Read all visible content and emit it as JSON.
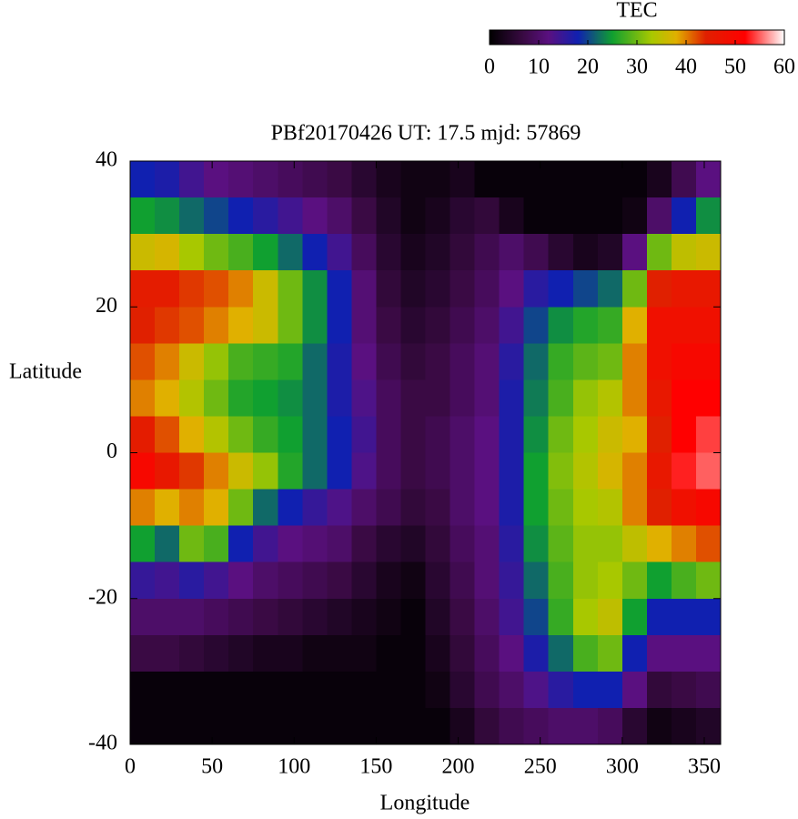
{
  "chart_data": {
    "type": "heatmap",
    "title": "PBf20170426  UT: 17.5  mjd: 57869",
    "x_label": "Longitude",
    "y_label": "Latitude",
    "colorbar_label": "TEC",
    "xlim": [
      0,
      360
    ],
    "ylim": [
      -40,
      40
    ],
    "xticks": [
      0,
      50,
      100,
      150,
      200,
      250,
      300,
      350
    ],
    "yticks": [
      -40,
      -20,
      0,
      20,
      40
    ],
    "clim": [
      0,
      60
    ],
    "cticks": [
      0,
      10,
      20,
      30,
      40,
      50,
      60
    ],
    "colormap": [
      {
        "value": 0,
        "color": "#000000"
      },
      {
        "value": 7,
        "color": "#3a0a44"
      },
      {
        "value": 12,
        "color": "#5a1080"
      },
      {
        "value": 18,
        "color": "#1020b0"
      },
      {
        "value": 25,
        "color": "#10a030"
      },
      {
        "value": 33,
        "color": "#a8c800"
      },
      {
        "value": 38,
        "color": "#e0b000"
      },
      {
        "value": 44,
        "color": "#e02000"
      },
      {
        "value": 52,
        "color": "#ff0000"
      },
      {
        "value": 60,
        "color": "#ffffff"
      }
    ],
    "x": [
      7.5,
      22.5,
      37.5,
      52.5,
      67.5,
      82.5,
      97.5,
      112.5,
      127.5,
      142.5,
      157.5,
      172.5,
      187.5,
      202.5,
      217.5,
      232.5,
      247.5,
      262.5,
      277.5,
      292.5,
      307.5,
      322.5,
      337.5,
      352.5
    ],
    "y": [
      37.5,
      32.5,
      27.5,
      22.5,
      17.5,
      12.5,
      7.5,
      2.5,
      -2.5,
      -7.5,
      -12.5,
      -17.5,
      -22.5,
      -27.5,
      -32.5,
      -37.5
    ],
    "z": [
      [
        18,
        25,
        36,
        45,
        44,
        42,
        40,
        45,
        50,
        40,
        25,
        15,
        10,
        7,
        1,
        1
      ],
      [
        17,
        24,
        37,
        45,
        43,
        40,
        38,
        42,
        46,
        38,
        22,
        14,
        10,
        7,
        1,
        1
      ],
      [
        14,
        22,
        33,
        43,
        42,
        36,
        34,
        38,
        43,
        40,
        30,
        16,
        10,
        6,
        1,
        1
      ],
      [
        12,
        20,
        30,
        42,
        40,
        32,
        30,
        34,
        40,
        38,
        28,
        14,
        9,
        5,
        1,
        1
      ],
      [
        11,
        18,
        28,
        40,
        38,
        28,
        26,
        30,
        36,
        30,
        18,
        12,
        8,
        4,
        1,
        1
      ],
      [
        10,
        16,
        25,
        36,
        36,
        27,
        25,
        27,
        32,
        22,
        14,
        10,
        7,
        3,
        1,
        1
      ],
      [
        9,
        14,
        22,
        30,
        30,
        26,
        24,
        25,
        26,
        18,
        12,
        9,
        6,
        3,
        1,
        1
      ],
      [
        8,
        12,
        18,
        24,
        24,
        22,
        22,
        22,
        22,
        15,
        11,
        8,
        5,
        2,
        1,
        1
      ],
      [
        7,
        10,
        14,
        18,
        18,
        17,
        17,
        18,
        18,
        13,
        10,
        7,
        4,
        2,
        1,
        1
      ],
      [
        5,
        7,
        9,
        11,
        11,
        12,
        13,
        14,
        13,
        10,
        7,
        5,
        3,
        2,
        1,
        1
      ],
      [
        3,
        4,
        5,
        6,
        7,
        8,
        9,
        9,
        9,
        8,
        5,
        3,
        2,
        1,
        1,
        1
      ],
      [
        2,
        2,
        3,
        4,
        5,
        6,
        7,
        7,
        7,
        6,
        4,
        2,
        1,
        1,
        1,
        1
      ],
      [
        2,
        3,
        4,
        5,
        6,
        7,
        7,
        8,
        8,
        7,
        6,
        5,
        4,
        3,
        2,
        1
      ],
      [
        3,
        5,
        6,
        7,
        8,
        9,
        9,
        10,
        10,
        10,
        9,
        8,
        7,
        6,
        5,
        3
      ],
      [
        1,
        6,
        8,
        9,
        10,
        11,
        11,
        12,
        12,
        12,
        11,
        11,
        10,
        9,
        8,
        6
      ],
      [
        1,
        3,
        10,
        12,
        14,
        16,
        17,
        17,
        17,
        17,
        16,
        15,
        14,
        12,
        10,
        8
      ],
      [
        1,
        1,
        8,
        16,
        20,
        22,
        23,
        24,
        25,
        25,
        24,
        22,
        20,
        17,
        13,
        9
      ],
      [
        1,
        1,
        5,
        18,
        24,
        27,
        28,
        30,
        31,
        30,
        29,
        28,
        27,
        22,
        16,
        10
      ],
      [
        1,
        1,
        3,
        20,
        26,
        29,
        32,
        33,
        34,
        33,
        32,
        32,
        33,
        28,
        18,
        10
      ],
      [
        1,
        1,
        4,
        22,
        27,
        30,
        34,
        36,
        37,
        34,
        32,
        33,
        35,
        30,
        18,
        9
      ],
      [
        1,
        2,
        12,
        30,
        38,
        40,
        40,
        38,
        40,
        40,
        35,
        30,
        25,
        18,
        12,
        5
      ],
      [
        3,
        10,
        30,
        44,
        48,
        48,
        46,
        44,
        46,
        44,
        38,
        25,
        18,
        12,
        6,
        2
      ],
      [
        8,
        18,
        35,
        46,
        48,
        50,
        52,
        52,
        53,
        48,
        40,
        28,
        18,
        12,
        7,
        3
      ],
      [
        12,
        24,
        36,
        46,
        48,
        50,
        52,
        54,
        55,
        50,
        42,
        30,
        18,
        12,
        8,
        4
      ]
    ]
  }
}
